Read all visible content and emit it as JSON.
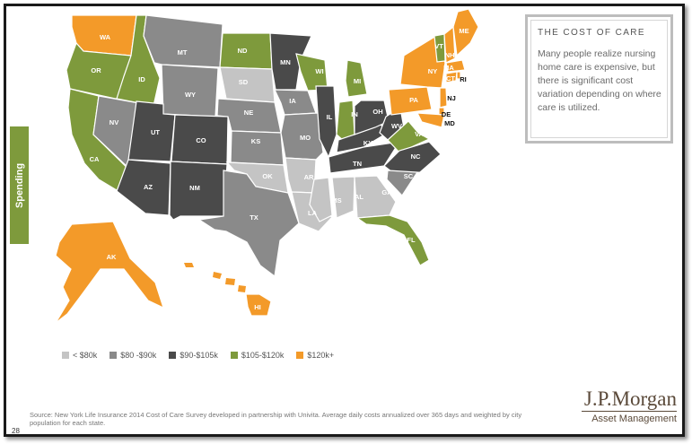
{
  "side_tab": {
    "label": "Spending"
  },
  "callout": {
    "title": "THE COST OF CARE",
    "body": "Many people realize nursing home care is expensive, but there is significant cost variation depending on where care is utilized."
  },
  "legend": [
    {
      "label": "< $80k",
      "color": "#c4c4c4"
    },
    {
      "label": "$80 -$90k",
      "color": "#8a8a8a"
    },
    {
      "label": "$90-$105k",
      "color": "#4a4a4a"
    },
    {
      "label": "$105-$120k",
      "color": "#7e9a3c"
    },
    {
      "label": "$120k+",
      "color": "#f39a29"
    }
  ],
  "states": {
    "WA": "$120k+",
    "OR": "$105-$120k",
    "CA": "$105-$120k",
    "ID": "$105-$120k",
    "NV": "$80 -$90k",
    "MT": "$80 -$90k",
    "WY": "$80 -$90k",
    "UT": "$90-$105k",
    "AZ": "$90-$105k",
    "CO": "$90-$105k",
    "NM": "$90-$105k",
    "ND": "$105-$120k",
    "SD": "< $80k",
    "NE": "$80 -$90k",
    "KS": "$80 -$90k",
    "OK": "< $80k",
    "TX": "$80 -$90k",
    "MN": "$90-$105k",
    "IA": "$80 -$90k",
    "MO": "$80 -$90k",
    "AR": "< $80k",
    "LA": "< $80k",
    "WI": "$105-$120k",
    "IL": "$90-$105k",
    "MS": "< $80k",
    "MI": "$105-$120k",
    "IN": "$105-$120k",
    "KY": "$90-$105k",
    "TN": "$90-$105k",
    "AL": "< $80k",
    "GA": "< $80k",
    "FL": "$105-$120k",
    "OH": "$90-$105k",
    "WV": "$90-$105k",
    "VA": "$105-$120k",
    "NC": "$90-$105k",
    "SC": "$80 -$90k",
    "PA": "$120k+",
    "NY": "$120k+",
    "VT": "$105-$120k",
    "NH": "$120k+",
    "ME": "$120k+",
    "MA": "$120k+",
    "RI": "$120k+",
    "CT": "$120k+",
    "NJ": "$120k+",
    "DE": "$120k+",
    "MD": "$120k+",
    "AK": "$120k+",
    "HI": "$120k+"
  },
  "source": "Source: New York Life Insurance 2014 Cost of Care Survey developed in partnership with Univita. Average daily costs annualized over 365 days and weighted by city population for each state.",
  "page_number": "28",
  "logo": {
    "name": "J.P.Morgan",
    "sub": "Asset Management"
  }
}
